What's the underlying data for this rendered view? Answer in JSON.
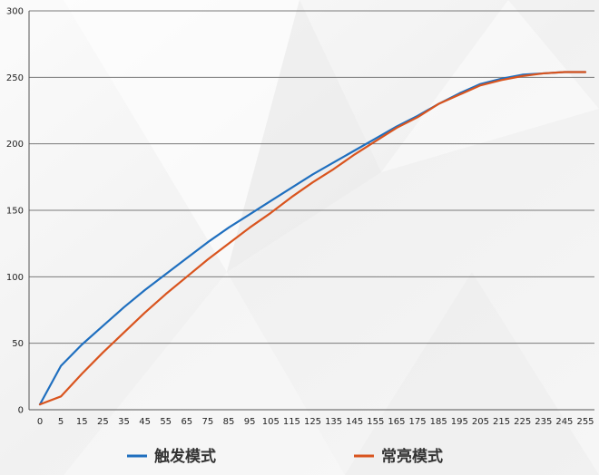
{
  "chart_data": {
    "type": "line",
    "title": "",
    "xlabel": "",
    "ylabel": "",
    "x": [
      0,
      5,
      15,
      25,
      35,
      45,
      55,
      65,
      75,
      85,
      95,
      105,
      115,
      125,
      135,
      145,
      155,
      165,
      175,
      185,
      195,
      205,
      215,
      225,
      235,
      245,
      255
    ],
    "x_tick_labels": [
      "0",
      "5",
      "15",
      "25",
      "35",
      "45",
      "55",
      "65",
      "75",
      "85",
      "95",
      "105",
      "115",
      "125",
      "135",
      "145",
      "155",
      "165",
      "175",
      "185",
      "195",
      "205",
      "215",
      "225",
      "235",
      "245",
      "255"
    ],
    "ylim": [
      0,
      300
    ],
    "y_ticks": [
      0,
      50,
      100,
      150,
      200,
      250,
      300
    ],
    "grid": "horizontal",
    "legend_position": "bottom",
    "series": [
      {
        "name": "触发模式",
        "color": "#1f6fbf",
        "values": [
          4,
          33,
          49,
          63,
          77,
          90,
          102,
          114,
          126,
          137,
          147,
          157,
          167,
          177,
          186,
          195,
          204,
          213,
          221,
          230,
          238,
          245,
          249,
          252,
          253,
          254,
          254
        ]
      },
      {
        "name": "常亮模式",
        "color": "#d9541e",
        "values": [
          4,
          10,
          27,
          43,
          58,
          73,
          87,
          100,
          113,
          125,
          137,
          148,
          160,
          171,
          181,
          192,
          202,
          212,
          220,
          230,
          237,
          244,
          248,
          251,
          253,
          254,
          254
        ]
      }
    ]
  }
}
